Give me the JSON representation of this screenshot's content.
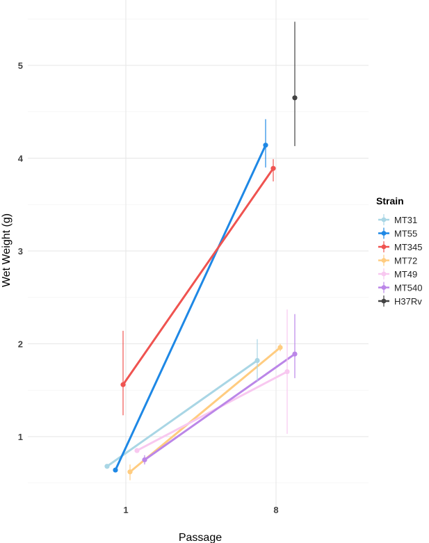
{
  "chart_data": {
    "type": "line",
    "xlabel": "Passage",
    "ylabel": "Wet Weight (g)",
    "categories": [
      "1",
      "8"
    ],
    "ylim": [
      0.4,
      5.5
    ],
    "yticks": [
      "1",
      "2",
      "3",
      "4",
      "5"
    ],
    "grid": true,
    "legend": {
      "title": "Strain",
      "position": "right"
    },
    "series": [
      {
        "name": "MT31",
        "color": "#a9d6e5",
        "values": [
          0.68,
          1.82
        ],
        "error": [
          [
            0.68,
            0.68
          ],
          [
            1.6,
            2.05
          ]
        ]
      },
      {
        "name": "MT55",
        "color": "#1e88e5",
        "values": [
          0.64,
          4.14
        ],
        "error": [
          [
            0.64,
            0.64
          ],
          [
            3.9,
            4.42
          ]
        ]
      },
      {
        "name": "MT345",
        "color": "#ef5350",
        "values": [
          1.56,
          3.89
        ],
        "error": [
          [
            1.23,
            2.14
          ],
          [
            3.75,
            3.99
          ]
        ]
      },
      {
        "name": "MT72",
        "color": "#ffcc80",
        "values": [
          0.62,
          1.96
        ],
        "error": [
          [
            0.53,
            0.7
          ],
          [
            1.92,
            2.0
          ]
        ]
      },
      {
        "name": "MT49",
        "color": "#f8c8f0",
        "values": [
          0.85,
          1.7
        ],
        "error": [
          [
            0.85,
            0.85
          ],
          [
            1.03,
            2.37
          ]
        ]
      },
      {
        "name": "MT540",
        "color": "#bb86e8",
        "values": [
          0.75,
          1.89
        ],
        "error": [
          [
            0.7,
            0.8
          ],
          [
            1.63,
            2.32
          ]
        ]
      },
      {
        "name": "H37Rv",
        "color": "#424242",
        "values": [
          null,
          4.65
        ],
        "error": [
          null,
          [
            4.13,
            5.47
          ]
        ]
      }
    ]
  }
}
